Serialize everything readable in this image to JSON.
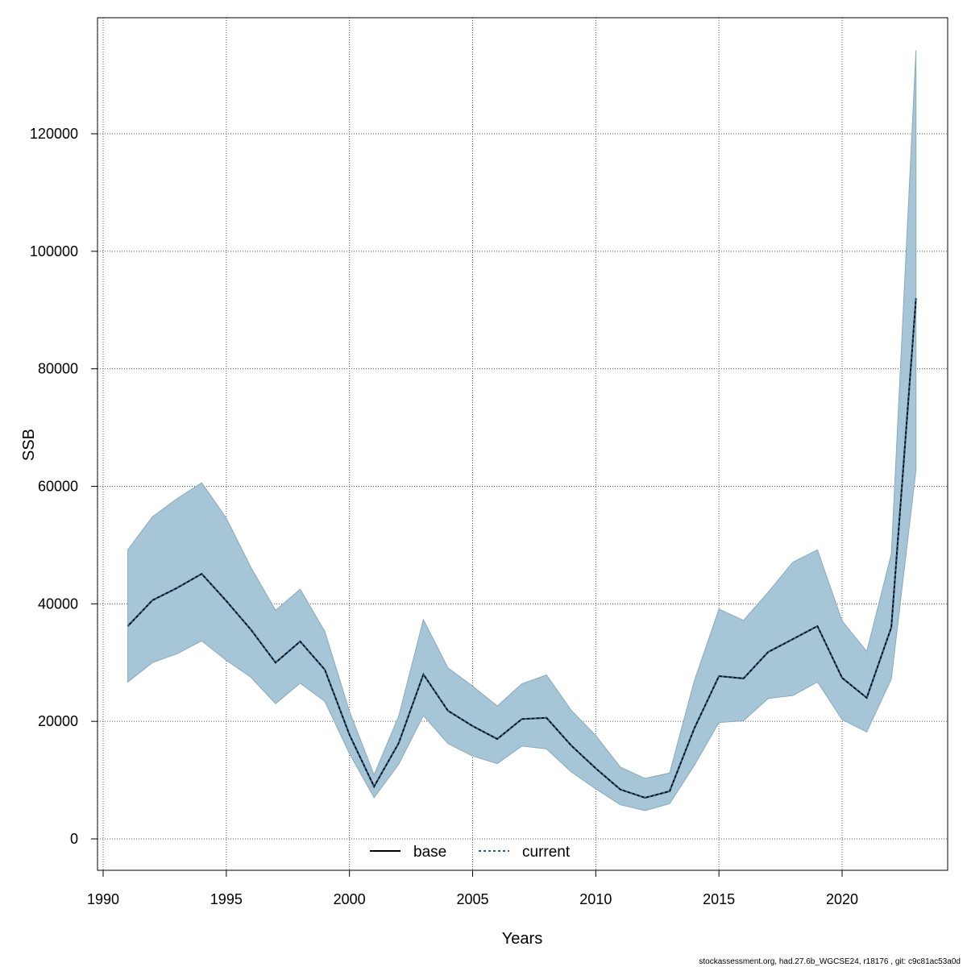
{
  "chart_data": {
    "type": "line",
    "xlabel": "Years",
    "ylabel": "SSB",
    "xlim": [
      1990,
      2024
    ],
    "ylim": [
      0,
      134000
    ],
    "x_ticks": [
      1990,
      1995,
      2000,
      2005,
      2010,
      2015,
      2020
    ],
    "y_ticks": [
      0,
      20000,
      40000,
      60000,
      80000,
      100000,
      120000
    ],
    "grid": true,
    "legend_position": "bottom-center",
    "x": [
      1991,
      1992,
      1993,
      1994,
      1995,
      1996,
      1997,
      1998,
      1999,
      2000,
      2001,
      2002,
      2003,
      2004,
      2005,
      2006,
      2007,
      2008,
      2009,
      2010,
      2011,
      2012,
      2013,
      2014,
      2015,
      2016,
      2017,
      2018,
      2019,
      2020,
      2021,
      2022,
      2023
    ],
    "series": [
      {
        "name": "base",
        "line_style": "solid",
        "color": "#000000",
        "values": [
          36200,
          40600,
          42700,
          45100,
          40500,
          35600,
          30000,
          33600,
          28800,
          17700,
          8900,
          16300,
          28000,
          21800,
          19200,
          17000,
          20400,
          20600,
          15900,
          12000,
          8400,
          7000,
          8100,
          18800,
          27700,
          27300,
          31800,
          34000,
          36200,
          27400,
          24000,
          36000,
          92000
        ]
      },
      {
        "name": "current",
        "line_style": "dashed",
        "color": "#1f5f8b",
        "values": [
          36200,
          40600,
          42700,
          45100,
          40500,
          35600,
          30000,
          33600,
          28800,
          17700,
          8900,
          16300,
          28000,
          21800,
          19200,
          17000,
          20400,
          20600,
          15900,
          12000,
          8400,
          7000,
          8100,
          18800,
          27700,
          27300,
          31800,
          34000,
          36200,
          27400,
          24000,
          36000,
          92000
        ]
      }
    ],
    "confidence_band": {
      "lower": [
        26700,
        30000,
        31500,
        33700,
        30400,
        27500,
        23000,
        26500,
        23400,
        14500,
        7000,
        12700,
        21000,
        16200,
        14100,
        12800,
        15800,
        15300,
        11400,
        8500,
        5800,
        4800,
        6000,
        12500,
        19800,
        20100,
        23900,
        24400,
        26700,
        20300,
        18200,
        27200,
        62800
      ],
      "upper": [
        49200,
        54800,
        57900,
        60600,
        54600,
        46200,
        38900,
        42500,
        35300,
        21700,
        10900,
        20900,
        37300,
        29100,
        26000,
        22600,
        26400,
        27900,
        21900,
        17600,
        12200,
        10300,
        11200,
        26900,
        39100,
        37200,
        42000,
        47100,
        49200,
        37100,
        31900,
        48500,
        134200
      ]
    }
  },
  "colors": {
    "band_fill": "#a6c5d6",
    "band_stroke": "#8aa9ba",
    "grid": "#555555"
  },
  "footer": {
    "credit": "stockassessment.org, had.27.6b_WGCSE24, r18176 , git: c9c81ac53a0d"
  }
}
